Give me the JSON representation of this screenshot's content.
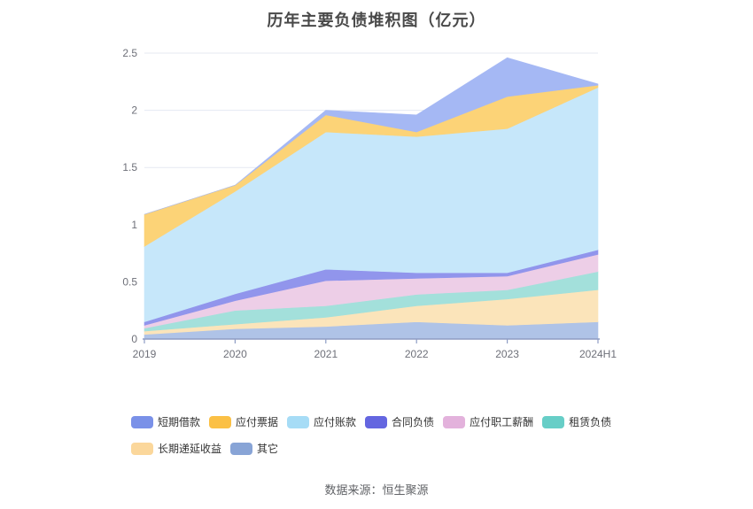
{
  "title": "历年主要负债堆积图（亿元）",
  "source": "数据来源：恒生聚源",
  "chart_data": {
    "type": "area",
    "stacked": true,
    "title": "历年主要负债堆积图（亿元）",
    "unit": "亿元",
    "grid": true,
    "legend_position": "bottom",
    "categories": [
      "2019",
      "2020",
      "2021",
      "2022",
      "2023",
      "2024H1"
    ],
    "y_ticks": [
      "0",
      "0.5",
      "1",
      "1.5",
      "2",
      "2.5"
    ],
    "ylim": [
      0,
      2.5
    ],
    "series_order": "bottom_to_top",
    "series": [
      {
        "name": "其它",
        "values": [
          0.04,
          0.09,
          0.11,
          0.15,
          0.12,
          0.15
        ],
        "fill": "#afc3e7",
        "color": "#88a4d6"
      },
      {
        "name": "长期递延收益",
        "values": [
          0.03,
          0.04,
          0.08,
          0.14,
          0.23,
          0.28
        ],
        "fill": "#fbe4ba",
        "color": "#fbd79b"
      },
      {
        "name": "租赁负债",
        "values": [
          0.025,
          0.12,
          0.1,
          0.1,
          0.08,
          0.16
        ],
        "fill": "#a3e0db",
        "color": "#67cec7"
      },
      {
        "name": "应付职工薪酬",
        "values": [
          0.025,
          0.085,
          0.22,
          0.14,
          0.12,
          0.15
        ],
        "fill": "#edcee7",
        "color": "#e3b2dc"
      },
      {
        "name": "合同负债",
        "values": [
          0.03,
          0.06,
          0.1,
          0.05,
          0.03,
          0.04
        ],
        "fill": "#9195ec",
        "color": "#6466e0"
      },
      {
        "name": "应付账款",
        "values": [
          0.66,
          0.895,
          1.2,
          1.19,
          1.26,
          1.42
        ],
        "fill": "#c6e7fa",
        "color": "#a6dcf6"
      },
      {
        "name": "应付票据",
        "values": [
          0.28,
          0.055,
          0.15,
          0.04,
          0.28,
          0.02
        ],
        "fill": "#fcd377",
        "color": "#fbc045"
      },
      {
        "name": "短期借款",
        "values": [
          0.0,
          0.0,
          0.04,
          0.15,
          0.34,
          0.01
        ],
        "fill": "#a5b8f4",
        "color": "#7a91e8"
      }
    ],
    "totals": [
      1.09,
      1.345,
      2.0,
      1.96,
      2.46,
      2.23
    ]
  }
}
